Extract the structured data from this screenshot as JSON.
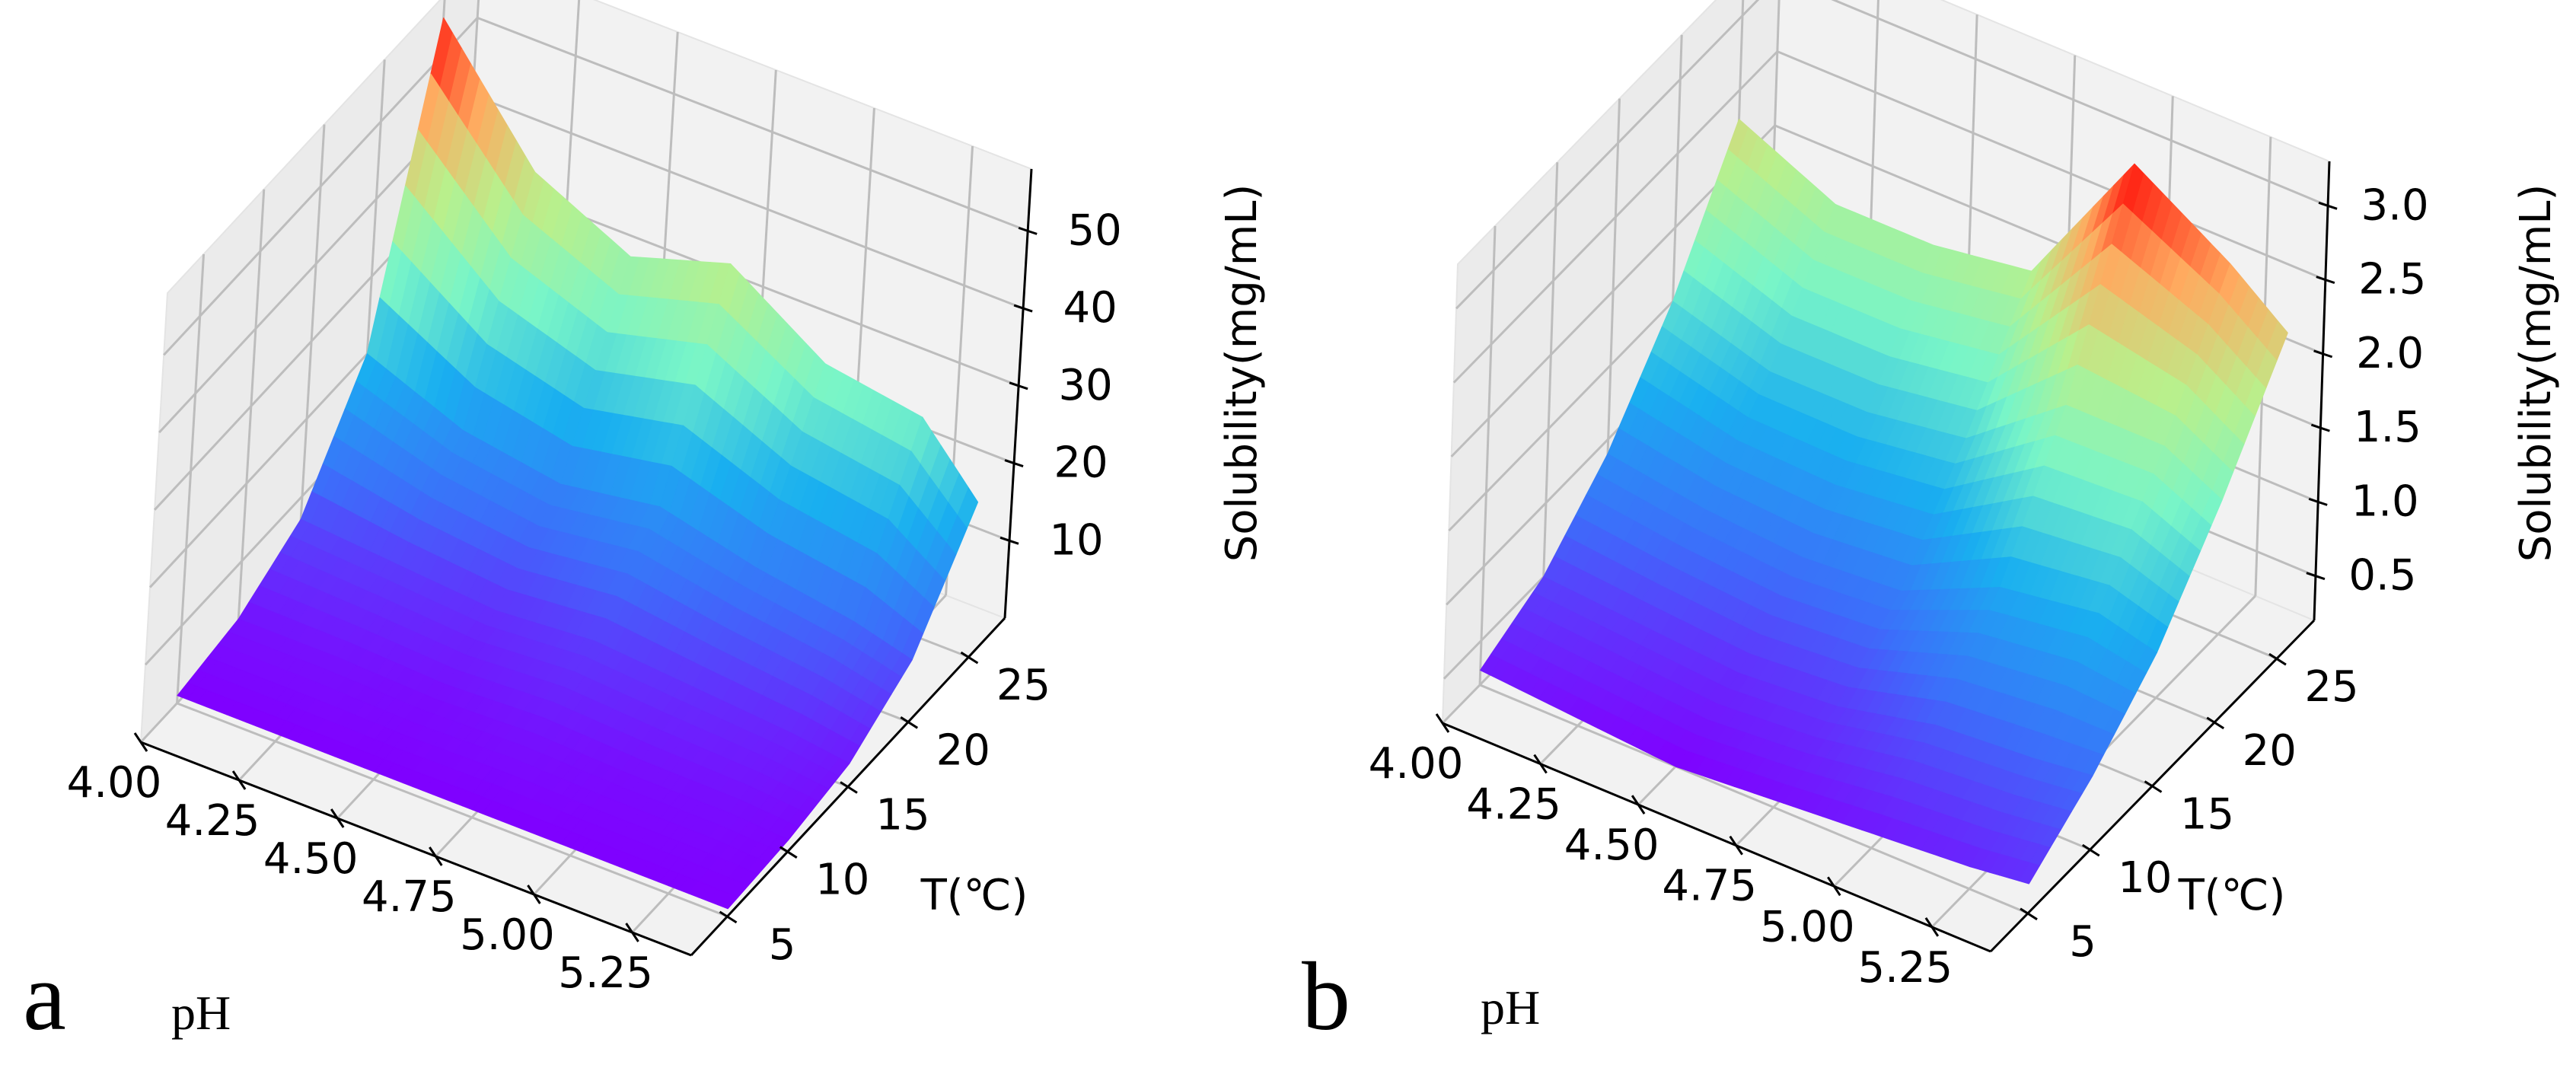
{
  "chart_data": [
    {
      "panel": "a",
      "type": "surface3d",
      "colormap": "rainbow",
      "xlabel": "pH",
      "ylabel": "T(℃)",
      "zlabel": "Solubility(mg/mL)",
      "x_ticks": [
        "4.00",
        "4.25",
        "4.50",
        "4.75",
        "5.00",
        "5.25"
      ],
      "y_ticks": [
        "5",
        "10",
        "15",
        "20",
        "25"
      ],
      "z_ticks": [
        "10",
        "20",
        "30",
        "40",
        "50"
      ],
      "xlim": [
        4.0,
        5.4
      ],
      "ylim": [
        2,
        28
      ],
      "zlim": [
        0,
        58
      ],
      "ph": [
        4.0,
        4.25,
        4.5,
        4.75,
        5.0,
        5.25,
        5.4
      ],
      "temperature": [
        5,
        10,
        15,
        20,
        25
      ],
      "solubility": [
        [
          1.0,
          2.5,
          7.0,
          20.0,
          55.0
        ],
        [
          1.0,
          2.5,
          6.0,
          15.0,
          40.0
        ],
        [
          1.0,
          2.0,
          5.0,
          13.0,
          34.0
        ],
        [
          1.0,
          2.5,
          6.0,
          15.0,
          38.0
        ],
        [
          1.0,
          2.0,
          5.0,
          12.0,
          30.0
        ],
        [
          1.0,
          2.0,
          4.0,
          10.0,
          28.0
        ],
        [
          1.0,
          1.5,
          3.0,
          8.0,
          20.0
        ]
      ]
    },
    {
      "panel": "b",
      "type": "surface3d",
      "colormap": "rainbow",
      "xlabel": "pH",
      "ylabel": "T(℃)",
      "zlabel": "Solubility(mg/mL)",
      "x_ticks": [
        "4.00",
        "4.25",
        "4.50",
        "4.75",
        "5.00",
        "5.25"
      ],
      "y_ticks": [
        "5",
        "10",
        "15",
        "20",
        "25"
      ],
      "z_ticks": [
        "0.5",
        "1.0",
        "1.5",
        "2.0",
        "2.5",
        "3.0"
      ],
      "xlim": [
        4.0,
        5.4
      ],
      "ylim": [
        2,
        28
      ],
      "zlim": [
        0.2,
        3.3
      ],
      "ph": [
        4.0,
        4.25,
        4.5,
        4.75,
        5.0,
        5.25,
        5.4
      ],
      "temperature": [
        5,
        10,
        15,
        20,
        25
      ],
      "solubility": [
        [
          0.3,
          0.5,
          0.9,
          1.5,
          2.3
        ],
        [
          0.25,
          0.45,
          0.8,
          1.3,
          2.0
        ],
        [
          0.2,
          0.4,
          0.75,
          1.3,
          2.0
        ],
        [
          0.25,
          0.45,
          0.8,
          1.4,
          2.1
        ],
        [
          0.3,
          0.6,
          1.1,
          1.9,
          3.1
        ],
        [
          0.35,
          0.65,
          1.2,
          1.9,
          2.7
        ],
        [
          0.4,
          0.7,
          1.1,
          1.7,
          2.4
        ]
      ]
    }
  ],
  "figure": {
    "panel_labels": [
      "a",
      "b"
    ],
    "ph_caption": "pH"
  }
}
